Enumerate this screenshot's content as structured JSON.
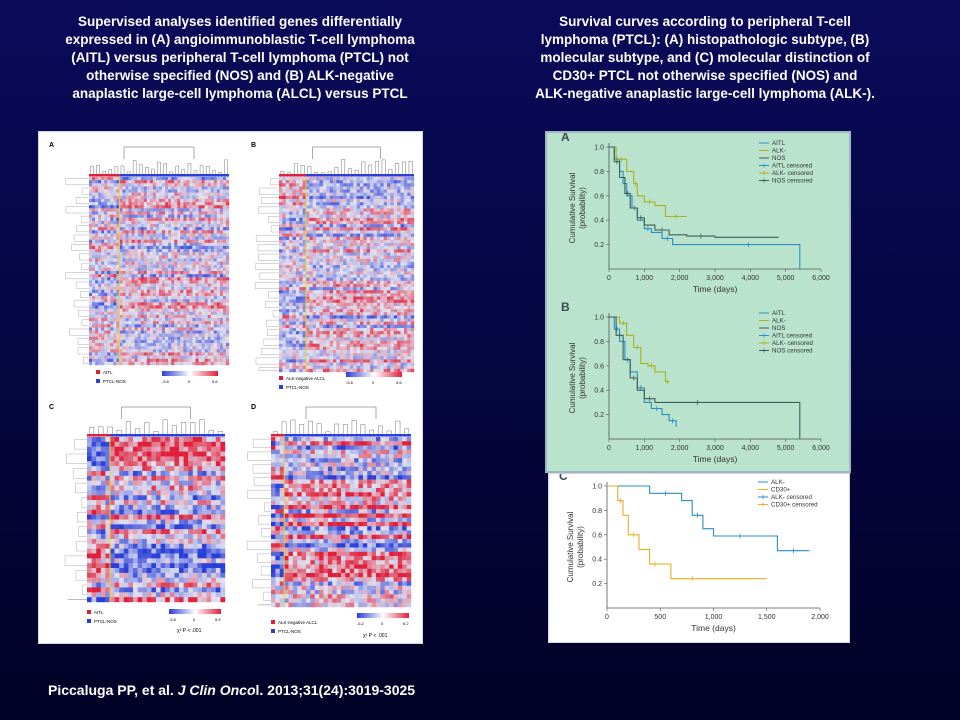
{
  "left_title": {
    "lines": [
      "Supervised analyses identified genes differentially",
      "expressed in (A) angioimmunoblastic  T-cell lymphoma",
      "(AITL) versus peripheral T-cell lymphoma (PTCL) not",
      "otherwise specified (NOS) and (B) ALK-negative",
      "anaplastic large-cell lymphoma  (ALCL) versus PTCL"
    ]
  },
  "right_title": {
    "lines": [
      "Survival curves according to peripheral T-cell",
      "lymphoma  (PTCL): (A)  histopathologic subtype, (B)",
      "molecular subtype, and  (C) molecular distinction of",
      "CD30+ PTCL not otherwise specified (NOS) and",
      "ALK-negative anaplastic large-cell lymphoma  (ALK-)."
    ]
  },
  "heatmap": {
    "panel_labels": [
      "A",
      "B",
      "C",
      "D"
    ],
    "legend_A": [
      "AITL",
      "PTCL-NOS"
    ],
    "legend_B": [
      "ALK-negative ALCL",
      "PTCL-NOS"
    ],
    "legend_C": [
      "AITL",
      "PTCL-NOS"
    ],
    "legend_D": [
      "ALK-negative ALCL",
      "PTCL-NOS"
    ],
    "scale_A": [
      "-5.6",
      "0",
      "5.6"
    ],
    "scale_B": [
      "-5.6",
      "0",
      "5.6"
    ],
    "scale_C": [
      "-5.5",
      "0",
      "5.5"
    ],
    "scale_D": [
      "-6.2",
      "0",
      "6.2"
    ],
    "pvalue": "χ² P < .001",
    "colors": {
      "high": "#e0203a",
      "low": "#2a3fd8",
      "mid": "#c9cfe6",
      "yellow": "#f0d020"
    }
  },
  "chart_data": [
    {
      "type": "line",
      "panel": "A",
      "xlabel": "Time (days)",
      "ylabel": "Cumulative Survival (probability)",
      "xlim": [
        0,
        6000
      ],
      "ylim": [
        0,
        1.0
      ],
      "xticks": [
        "0",
        "1,000",
        "2,000",
        "3,000",
        "4,000",
        "5,000",
        "6,000"
      ],
      "yticks": [
        "0.2",
        "0.4",
        "0.6",
        "0.8",
        "1.0"
      ],
      "legend": [
        "AITL",
        "ALK-",
        "NOS",
        "AITL censored",
        "ALK- censored",
        "NOS censored"
      ],
      "colors": {
        "AITL": "#2a8fc6",
        "ALK-": "#a8b21e",
        "NOS": "#3e5e58"
      },
      "series": [
        {
          "name": "AITL",
          "x": [
            0,
            150,
            300,
            400,
            500,
            650,
            800,
            1000,
            1200,
            1500,
            1800,
            2500,
            5400,
            5400
          ],
          "y": [
            1.0,
            0.9,
            0.8,
            0.7,
            0.6,
            0.5,
            0.4,
            0.33,
            0.3,
            0.25,
            0.2,
            0.2,
            0.2,
            0.0
          ]
        },
        {
          "name": "ALK-",
          "x": [
            0,
            200,
            500,
            700,
            800,
            1000,
            1300,
            1600,
            2200
          ],
          "y": [
            1.0,
            0.9,
            0.8,
            0.7,
            0.6,
            0.55,
            0.52,
            0.43,
            0.43
          ]
        },
        {
          "name": "NOS",
          "x": [
            0,
            150,
            300,
            450,
            600,
            800,
            1000,
            1300,
            1700,
            2200,
            3000,
            4800
          ],
          "y": [
            1.0,
            0.88,
            0.75,
            0.62,
            0.5,
            0.42,
            0.36,
            0.32,
            0.28,
            0.27,
            0.26,
            0.26
          ]
        }
      ]
    },
    {
      "type": "line",
      "panel": "B",
      "xlabel": "Time (days)",
      "ylabel": "Cumulative Survival (probability)",
      "xlim": [
        0,
        6000
      ],
      "ylim": [
        0,
        1.0
      ],
      "xticks": [
        "0",
        "1,000",
        "2,000",
        "3,000",
        "4,000",
        "5,000",
        "6,000"
      ],
      "yticks": [
        "0.2",
        "0.4",
        "0.6",
        "0.8",
        "1.0"
      ],
      "legend": [
        "AITL",
        "ALK-",
        "NOS",
        "AITL censored",
        "ALK- censored",
        "NOS censored"
      ],
      "colors": {
        "AITL": "#2a8fc6",
        "ALK-": "#a8b21e",
        "NOS": "#3e5e58"
      },
      "series": [
        {
          "name": "AITL",
          "x": [
            0,
            150,
            300,
            450,
            600,
            800,
            1000,
            1200,
            1500,
            1700,
            1900
          ],
          "y": [
            1.0,
            0.9,
            0.8,
            0.65,
            0.55,
            0.42,
            0.3,
            0.25,
            0.2,
            0.15,
            0.1
          ]
        },
        {
          "name": "ALK-",
          "x": [
            0,
            300,
            500,
            700,
            900,
            1100,
            1300,
            1600,
            1700
          ],
          "y": [
            1.0,
            0.95,
            0.85,
            0.75,
            0.62,
            0.6,
            0.55,
            0.47,
            0.47
          ]
        },
        {
          "name": "NOS",
          "x": [
            0,
            200,
            400,
            600,
            800,
            1000,
            1300,
            2000,
            3000,
            5400,
            5400
          ],
          "y": [
            1.0,
            0.85,
            0.65,
            0.5,
            0.4,
            0.33,
            0.3,
            0.3,
            0.3,
            0.3,
            0.0
          ]
        }
      ]
    },
    {
      "type": "line",
      "panel": "C",
      "xlabel": "Time (days)",
      "ylabel": "Cumulative Survival (probability)",
      "xlim": [
        0,
        2000
      ],
      "ylim": [
        0,
        1.0
      ],
      "xticks": [
        "0",
        "500",
        "1,000",
        "1,500",
        "2,000"
      ],
      "yticks": [
        "0.2",
        "0.4",
        "0.6",
        "0.8",
        "1.0"
      ],
      "legend": [
        "ALK-",
        "CD30+",
        "ALK- censored",
        "CD30+ censored"
      ],
      "colors": {
        "ALK-": "#2a8fc6",
        "CD30+": "#e8b020"
      },
      "series": [
        {
          "name": "ALK-",
          "x": [
            0,
            400,
            700,
            800,
            900,
            1000,
            1500,
            1600,
            1900
          ],
          "y": [
            1.0,
            0.94,
            0.88,
            0.76,
            0.65,
            0.59,
            0.59,
            0.47,
            0.47
          ]
        },
        {
          "name": "CD30+",
          "x": [
            0,
            100,
            150,
            200,
            300,
            400,
            500,
            600,
            1000,
            1500
          ],
          "y": [
            1.0,
            0.88,
            0.76,
            0.6,
            0.48,
            0.36,
            0.36,
            0.24,
            0.24,
            0.24
          ]
        }
      ]
    }
  ],
  "citation": {
    "authors": "Piccaluga PP, et al.",
    "journal": "J Clin Onco",
    "rest": "l. 2013;31(24):3019-3025"
  }
}
